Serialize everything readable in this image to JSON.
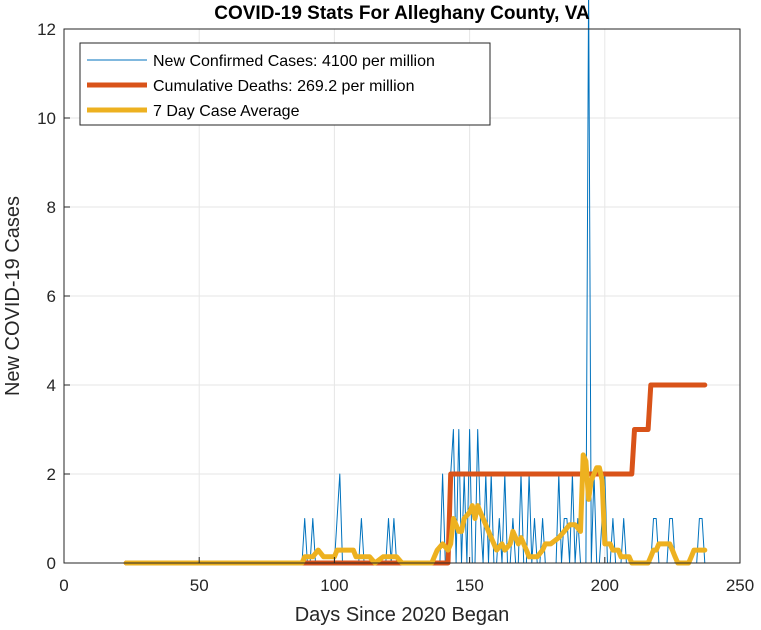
{
  "chart_data": {
    "type": "line",
    "title": "COVID-19 Stats For Alleghany County, VA",
    "xlabel": "Days Since 2020 Began",
    "ylabel": "New COVID-19 Cases",
    "xlim": [
      0,
      250
    ],
    "ylim": [
      0,
      12
    ],
    "xticks": [
      "0",
      "50",
      "100",
      "150",
      "200",
      "250"
    ],
    "yticks": [
      "0",
      "2",
      "4",
      "6",
      "8",
      "10",
      "12"
    ],
    "grid": true,
    "legend_position": "top-left",
    "series": [
      {
        "name": "New Confirmed Cases: 4100 per million",
        "color": "#0072BD",
        "style": "thin",
        "x": [
          23,
          88,
          89,
          90,
          91,
          92,
          93,
          94,
          95,
          96,
          100,
          101,
          102,
          103,
          104,
          108,
          109,
          110,
          111,
          112,
          113,
          119,
          120,
          121,
          122,
          123,
          139,
          140,
          141,
          142,
          143,
          144,
          145,
          146,
          147,
          148,
          149,
          150,
          151,
          152,
          153,
          154,
          155,
          156,
          157,
          158,
          159,
          160,
          161,
          162,
          163,
          164,
          165,
          166,
          167,
          168,
          169,
          170,
          171,
          172,
          173,
          174,
          175,
          176,
          177,
          178,
          179,
          180,
          181,
          182,
          183,
          184,
          185,
          186,
          187,
          188,
          189,
          190,
          191,
          192,
          193,
          194,
          195,
          196,
          197,
          198,
          199,
          200,
          201,
          202,
          203,
          204,
          205,
          206,
          207,
          208,
          209,
          210,
          211,
          212,
          213,
          214,
          215,
          216,
          217,
          218,
          219,
          220,
          221,
          222,
          223,
          224,
          225,
          226,
          227,
          228,
          229,
          230,
          231,
          232,
          233,
          234,
          235,
          236,
          237
        ],
        "values": [
          0,
          0,
          1,
          0,
          0,
          1,
          0,
          0,
          0,
          0,
          0,
          1,
          2,
          0,
          0,
          0,
          0,
          1,
          0,
          0,
          0,
          0,
          1,
          0,
          1,
          0,
          0,
          2,
          0,
          0,
          2,
          3,
          0,
          3,
          0,
          2,
          0,
          3,
          0,
          0,
          3,
          1,
          0,
          2,
          0,
          2,
          0,
          0,
          1,
          0,
          2,
          0,
          0,
          1,
          0,
          0,
          2,
          0,
          0,
          2,
          0,
          1,
          0,
          0,
          1,
          0,
          0,
          0,
          0,
          0,
          2,
          0,
          1,
          1,
          0,
          2,
          0,
          1,
          0,
          0,
          0,
          13,
          0,
          2,
          0,
          0,
          1,
          2,
          0,
          0,
          1,
          0,
          0,
          0,
          1,
          0,
          0,
          0,
          0,
          0,
          0,
          0,
          0,
          0,
          0,
          1,
          1,
          0,
          0,
          0,
          0,
          1,
          1,
          0,
          0,
          0,
          0,
          0,
          0,
          0,
          0,
          0,
          1,
          1,
          0
        ]
      },
      {
        "name": "Cumulative Deaths: 269.2 per million",
        "color": "#D95319",
        "style": "thick",
        "x": [
          23,
          142,
          143,
          210,
          211,
          216,
          217,
          237
        ],
        "values": [
          0,
          0,
          2,
          2,
          3,
          3,
          4,
          4
        ]
      },
      {
        "name": "7 Day Case Average",
        "color": "#EDB120",
        "style": "thick",
        "x": [
          23,
          88,
          89,
          92,
          94,
          96,
          98,
          100,
          101,
          103,
          107,
          108,
          110,
          113,
          115,
          118,
          120,
          123,
          125,
          127,
          136,
          138,
          140,
          142,
          143,
          144,
          146,
          147,
          148,
          150,
          151,
          152,
          153,
          154,
          155,
          157,
          158,
          159,
          160,
          162,
          163,
          165,
          166,
          168,
          169,
          171,
          172,
          174,
          175,
          177,
          178,
          180,
          183,
          185,
          187,
          189,
          191,
          192,
          193,
          194,
          195,
          196,
          197,
          198,
          199,
          200,
          201,
          202,
          203,
          204,
          205,
          206,
          208,
          209,
          210,
          211,
          212,
          213,
          214,
          215,
          216,
          217,
          218,
          219,
          220,
          221,
          222,
          223,
          224,
          225,
          226,
          227,
          228,
          229,
          230,
          231,
          232,
          233,
          234,
          235,
          236,
          237
        ],
        "values": [
          0,
          0,
          0.14,
          0.14,
          0.29,
          0.14,
          0.14,
          0.14,
          0.29,
          0.29,
          0.29,
          0.14,
          0.14,
          0.14,
          0,
          0.14,
          0.14,
          0.14,
          0,
          0,
          0,
          0.29,
          0.43,
          0.29,
          0.43,
          1.0,
          0.71,
          0.71,
          1.0,
          1.14,
          1.29,
          1.0,
          1.29,
          1.14,
          1.0,
          0.71,
          0.57,
          0.43,
          0.29,
          0.43,
          0.29,
          0.43,
          0.71,
          0.43,
          0.57,
          0.29,
          0.14,
          0.14,
          0.14,
          0.29,
          0.43,
          0.43,
          0.57,
          0.71,
          0.86,
          0.86,
          0.71,
          2.43,
          2.29,
          1.43,
          1.86,
          2.0,
          2.14,
          2.14,
          1.86,
          0.43,
          0.43,
          0.43,
          0.29,
          0.29,
          0.29,
          0.14,
          0.14,
          0.14,
          0,
          0,
          0,
          0,
          0,
          0,
          0,
          0.14,
          0.29,
          0.29,
          0.43,
          0.43,
          0.43,
          0.43,
          0.43,
          0.29,
          0.14,
          0,
          0,
          0,
          0,
          0,
          0.14,
          0.29,
          0.29,
          0.29,
          0.29,
          0.29
        ]
      }
    ]
  }
}
